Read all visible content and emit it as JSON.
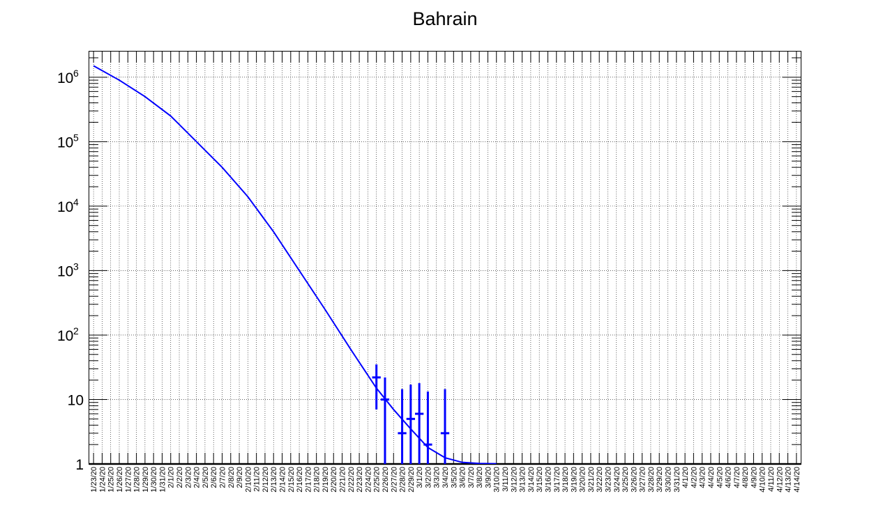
{
  "chart_data": {
    "type": "scatter",
    "title": "Bahrain",
    "xlabel": "",
    "ylabel": "",
    "yscale": "log",
    "grid": true,
    "x_tick_labels": [
      "1/23/20",
      "1/24/20",
      "1/25/20",
      "1/26/20",
      "1/27/20",
      "1/28/20",
      "1/29/20",
      "1/30/20",
      "1/31/20",
      "2/1/20",
      "2/2/20",
      "2/3/20",
      "2/4/20",
      "2/5/20",
      "2/6/20",
      "2/7/20",
      "2/8/20",
      "2/9/20",
      "2/10/20",
      "2/11/20",
      "2/12/20",
      "2/13/20",
      "2/14/20",
      "2/15/20",
      "2/16/20",
      "2/17/20",
      "2/18/20",
      "2/19/20",
      "2/20/20",
      "2/21/20",
      "2/22/20",
      "2/23/20",
      "2/24/20",
      "2/25/20",
      "2/26/20",
      "2/27/20",
      "2/28/20",
      "2/29/20",
      "3/1/20",
      "3/2/20",
      "3/3/20",
      "3/4/20",
      "3/5/20",
      "3/6/20",
      "3/7/20",
      "3/8/20",
      "3/9/20",
      "3/10/20",
      "3/11/20",
      "3/12/20",
      "3/13/20",
      "3/14/20",
      "3/15/20",
      "3/16/20",
      "3/17/20",
      "3/18/20",
      "3/19/20",
      "3/20/20",
      "3/21/20",
      "3/22/20",
      "3/23/20",
      "3/24/20",
      "3/25/20",
      "3/26/20",
      "3/27/20",
      "3/28/20",
      "3/29/20",
      "3/30/20",
      "3/31/20",
      "4/1/20",
      "4/2/20",
      "4/3/20",
      "4/4/20",
      "4/5/20",
      "4/6/20",
      "4/7/20",
      "4/8/20",
      "4/9/20",
      "4/10/20",
      "4/11/20",
      "4/12/20",
      "4/13/20",
      "4/14/20"
    ],
    "y_tick_labels": [
      {
        "value": 1,
        "base": "1",
        "exp": ""
      },
      {
        "value": 10,
        "base": "10",
        "exp": ""
      },
      {
        "value": 100,
        "base": "10",
        "exp": "2"
      },
      {
        "value": 1000,
        "base": "10",
        "exp": "3"
      },
      {
        "value": 10000,
        "base": "10",
        "exp": "4"
      },
      {
        "value": 100000,
        "base": "10",
        "exp": "5"
      },
      {
        "value": 1000000,
        "base": "10",
        "exp": "6"
      }
    ],
    "ylim": [
      1,
      2500000
    ],
    "series": [
      {
        "style": "points-with-error-bars",
        "color": "#0000ff",
        "points": [
          {
            "x": "2/25/20",
            "y": 22,
            "err_low": 15,
            "err_high": 13
          },
          {
            "x": "2/26/20",
            "y": 10,
            "err_low": 10,
            "err_high": 12
          },
          {
            "x": "2/28/20",
            "y": 3,
            "err_low": 3,
            "err_high": 11.5
          },
          {
            "x": "2/29/20",
            "y": 5,
            "err_low": 5,
            "err_high": 12
          },
          {
            "x": "3/1/20",
            "y": 6,
            "err_low": 6,
            "err_high": 12
          },
          {
            "x": "3/2/20",
            "y": 2,
            "err_low": 2,
            "err_high": 11.3
          },
          {
            "x": "3/4/20",
            "y": 3,
            "err_low": 3,
            "err_high": 11.5
          }
        ]
      },
      {
        "style": "fit-line",
        "color": "#0000ff",
        "x": [
          "1/23/20",
          "1/26/20",
          "1/29/20",
          "2/1/20",
          "2/4/20",
          "2/7/20",
          "2/10/20",
          "2/13/20",
          "2/16/20",
          "2/19/20",
          "2/22/20",
          "2/25/20",
          "2/27/20",
          "2/29/20",
          "3/2/20",
          "3/4/20",
          "3/6/20",
          "3/8/20",
          "3/10/20"
        ],
        "y": [
          1500000,
          900000,
          500000,
          250000,
          100000,
          40000,
          14000,
          4000,
          1000,
          250,
          60,
          15,
          7,
          3.5,
          1.8,
          1.25,
          1.06,
          1.02,
          1.01
        ]
      }
    ]
  }
}
